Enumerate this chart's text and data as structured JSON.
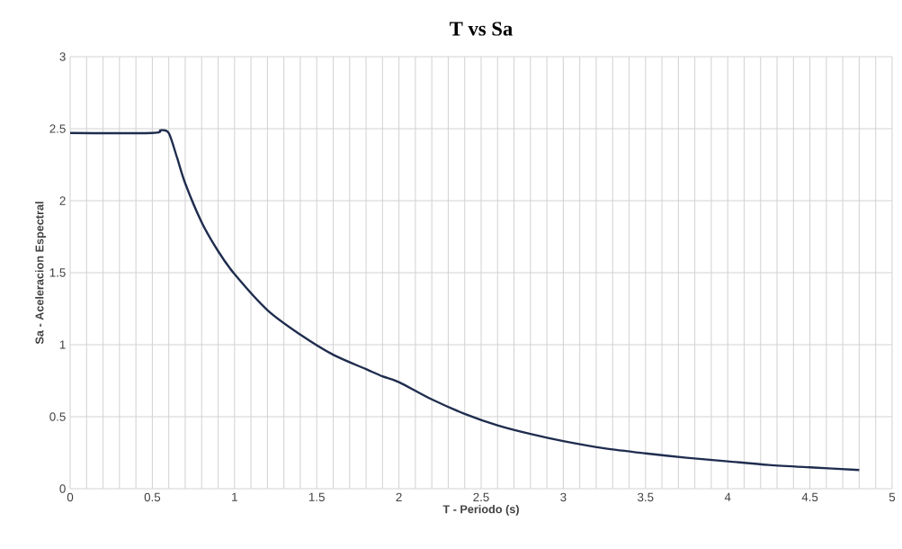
{
  "chart_data": {
    "type": "line",
    "title": "T vs Sa",
    "xlabel": "T - Periodo (s)",
    "ylabel": "Sa - Aceleracion Espectral",
    "x": [
      0,
      0.5,
      0.55,
      0.6,
      0.65,
      0.7,
      0.8,
      0.9,
      1.0,
      1.2,
      1.4,
      1.6,
      1.8,
      1.9,
      2.0,
      2.2,
      2.4,
      2.6,
      2.8,
      3.0,
      3.25,
      3.5,
      3.75,
      4.0,
      4.25,
      4.5,
      4.8
    ],
    "series": [
      {
        "color": "#1f2d4e",
        "values": [
          2.47,
          2.47,
          2.49,
          2.47,
          2.3,
          2.12,
          1.85,
          1.65,
          1.49,
          1.24,
          1.07,
          0.93,
          0.83,
          0.78,
          0.74,
          0.62,
          0.52,
          0.44,
          0.38,
          0.33,
          0.28,
          0.245,
          0.215,
          0.19,
          0.165,
          0.148,
          0.13
        ]
      }
    ],
    "xlim": [
      0,
      5
    ],
    "ylim": [
      0,
      3
    ],
    "xticks": [
      0,
      0.5,
      1,
      1.5,
      2,
      2.5,
      3,
      3.5,
      4,
      4.5,
      5
    ],
    "yticks": [
      0,
      0.5,
      1,
      1.5,
      2,
      2.5,
      3
    ],
    "grid": true,
    "marker": "none",
    "line_style": "solid"
  }
}
